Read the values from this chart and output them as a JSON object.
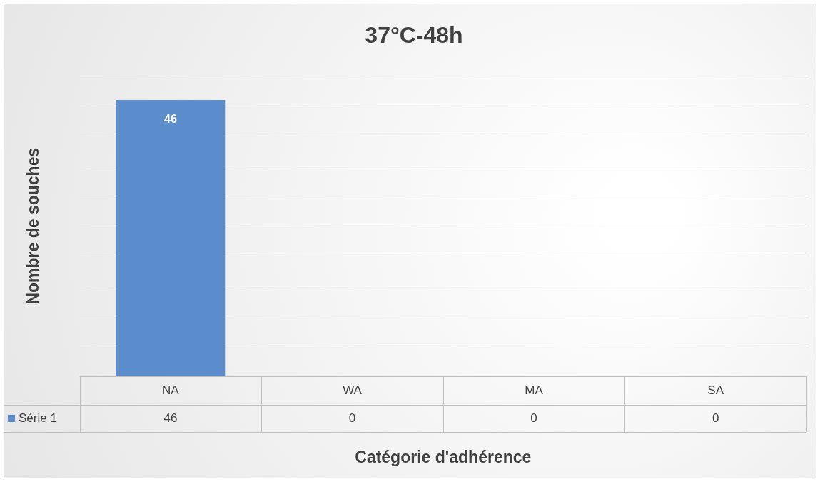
{
  "chart_data": {
    "type": "bar",
    "title": "37°C-48h",
    "xlabel": "Catégorie d'adhérence",
    "ylabel": "Nombre de souches",
    "categories": [
      "NA",
      "WA",
      "MA",
      "SA"
    ],
    "series": [
      {
        "name": "Série 1",
        "color": "#5b8ccc",
        "values": [
          46,
          0,
          0,
          0
        ]
      }
    ],
    "ylim": [
      0,
      50
    ],
    "yticks": [
      {
        "value": 0,
        "label": null
      },
      {
        "value": 5,
        "label": null
      },
      {
        "value": 10,
        "label": null
      },
      {
        "value": 15,
        "label": null
      },
      {
        "value": 20,
        "label": null
      },
      {
        "value": 25,
        "label": null
      },
      {
        "value": 30,
        "label": null
      },
      {
        "value": 35,
        "label": null
      },
      {
        "value": 40,
        "label": null
      },
      {
        "value": 45,
        "label": null
      },
      {
        "value": 50,
        "label": null
      }
    ],
    "annotations": [
      {
        "text": "46",
        "x": "NA",
        "y": 46
      }
    ],
    "grid": "y",
    "tick_labels": "x",
    "data_labels": true,
    "legend": "bottom left"
  }
}
